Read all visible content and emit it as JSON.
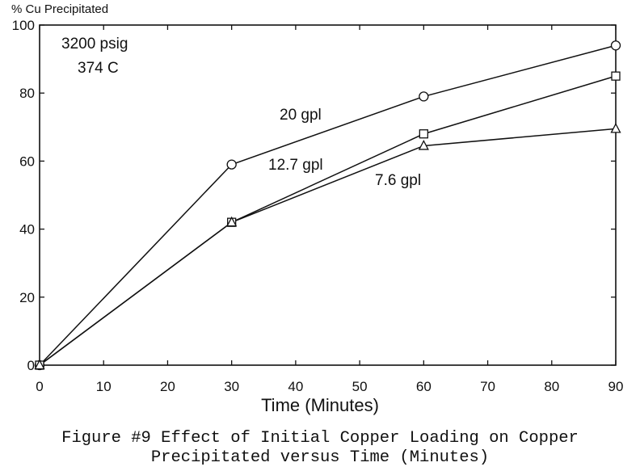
{
  "chart_data": {
    "type": "line",
    "ylabel": "% Cu Precipitated",
    "xlabel": "Time (Minutes)",
    "xlim": [
      0,
      90
    ],
    "ylim": [
      0,
      100
    ],
    "xticks": [
      0,
      10,
      20,
      30,
      40,
      50,
      60,
      70,
      80,
      90
    ],
    "yticks": [
      0,
      20,
      40,
      60,
      80,
      100
    ],
    "grid": false,
    "conditions": [
      "3200 psig",
      "374 C"
    ],
    "series": [
      {
        "name": "20 gpl",
        "marker": "circle",
        "x": [
          0,
          30,
          60,
          90
        ],
        "y": [
          0,
          59,
          79,
          94
        ]
      },
      {
        "name": "12.7 gpl",
        "marker": "square",
        "x": [
          0,
          30,
          60,
          90
        ],
        "y": [
          0,
          42,
          68,
          85
        ]
      },
      {
        "name": "7.6 gpl",
        "marker": "triangle",
        "x": [
          0,
          30,
          60,
          90
        ],
        "y": [
          0,
          42,
          64.5,
          69.5
        ]
      }
    ]
  },
  "caption": {
    "line1": "Figure #9 Effect of Initial Copper Loading on Copper",
    "line2": "Precipitated versus Time (Minutes)"
  }
}
